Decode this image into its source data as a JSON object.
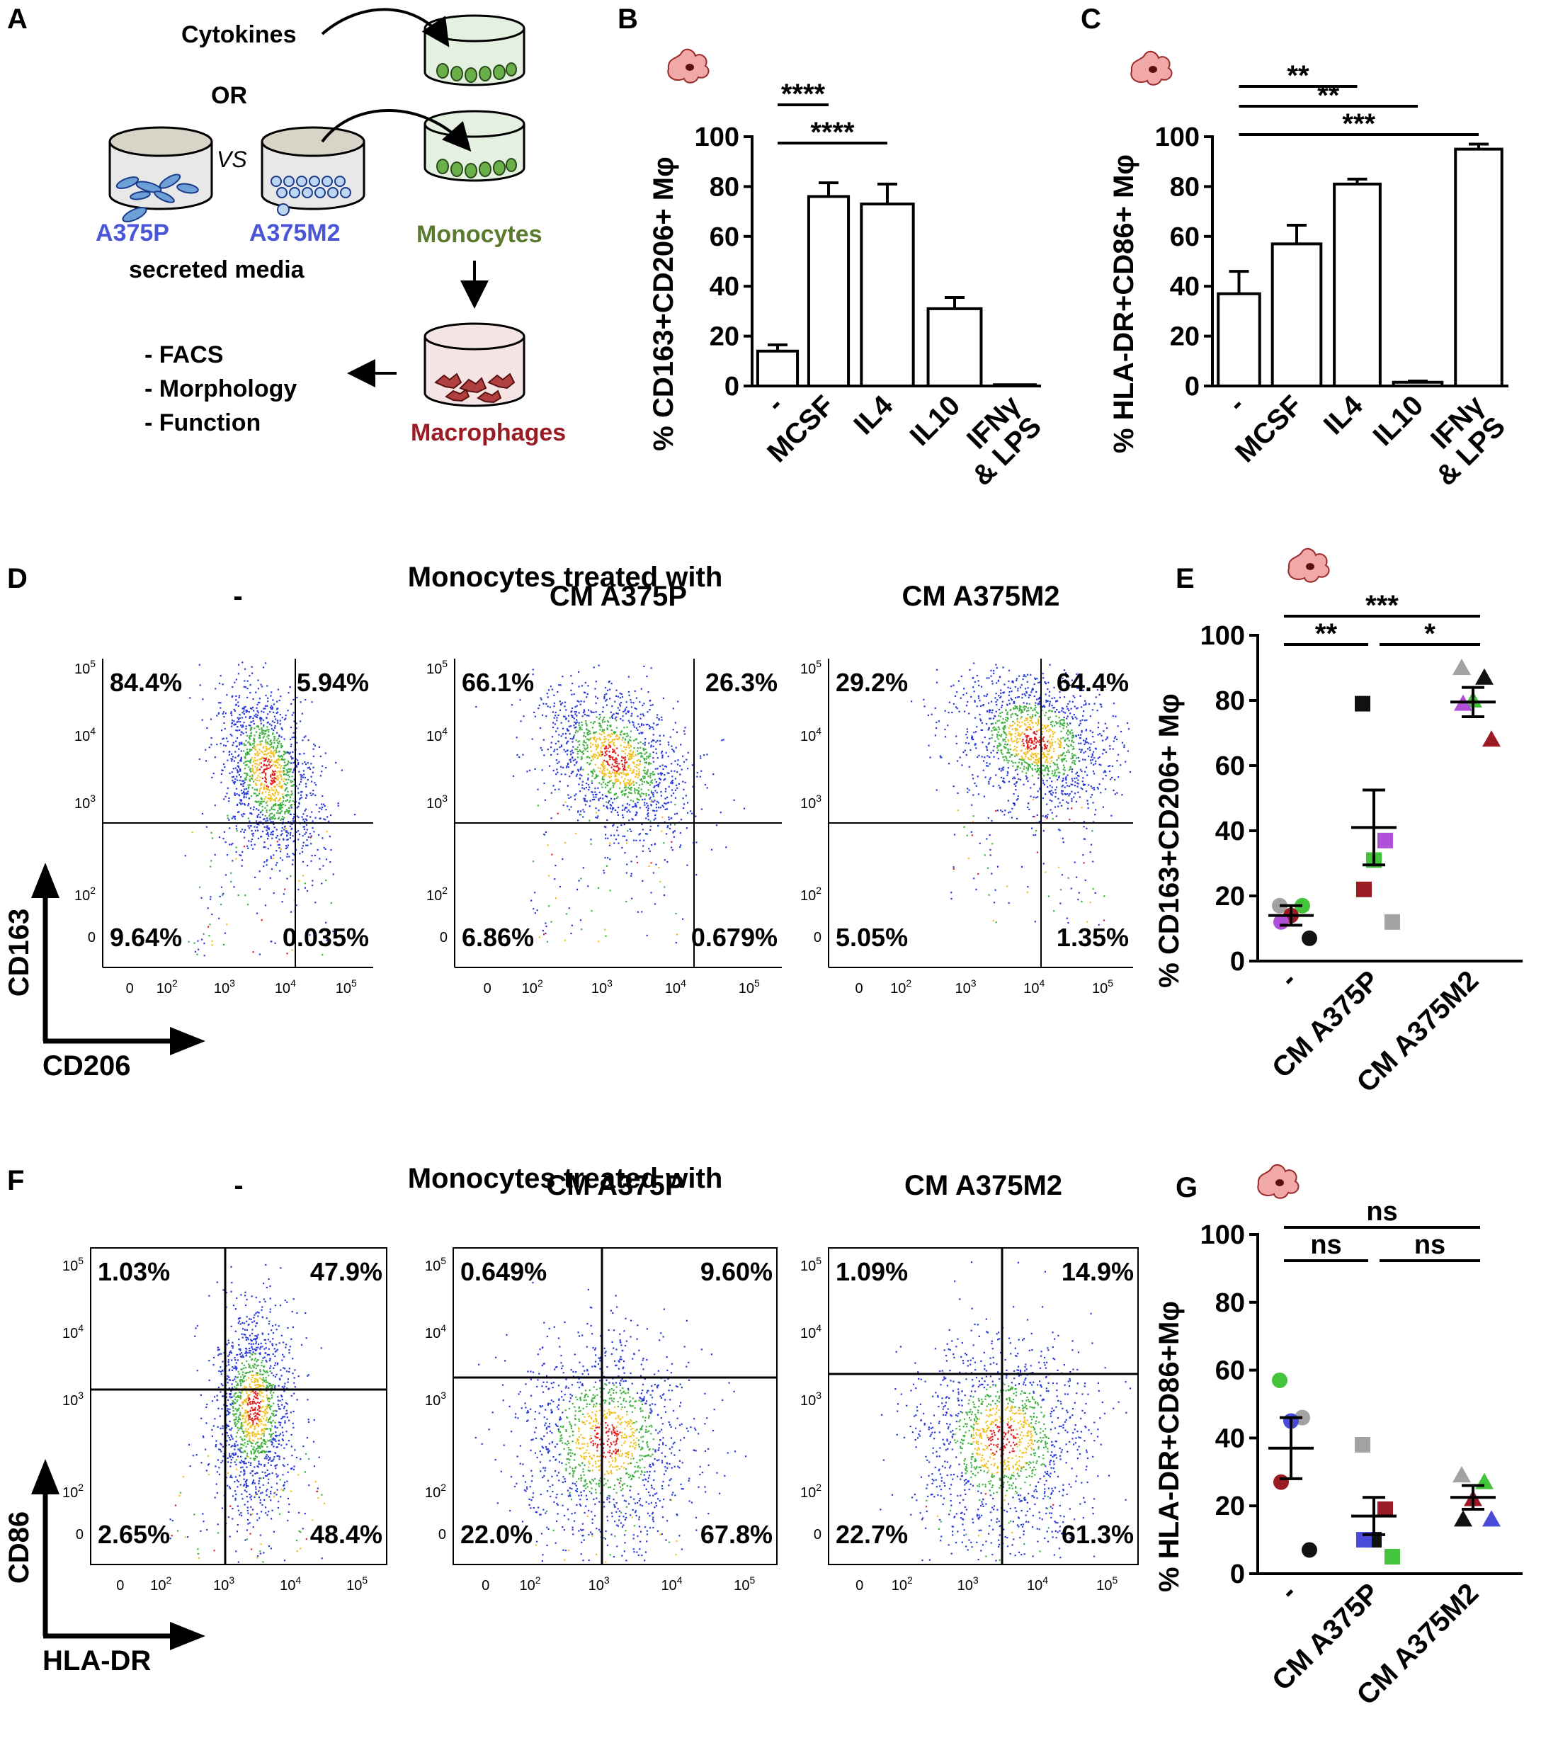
{
  "panel_labels": [
    "A",
    "B",
    "C",
    "D",
    "E",
    "F",
    "G"
  ],
  "schematic": {
    "cytokines": "Cytokines",
    "or": "OR",
    "vs": "VS",
    "a375p": "A375P",
    "a375m2": "A375M2",
    "secreted_media": "secreted media",
    "monocytes": "Monocytes",
    "macrophages": "Macrophages",
    "readouts": [
      "- FACS",
      "- Morphology",
      "- Function"
    ]
  },
  "colors": {
    "cell_line_blue": "#4a56d6",
    "monocyte_green": "#5a7a2e",
    "macrophage_red": "#9b1b24",
    "macrophage_icon": "#f0a8a8",
    "purple": "#b050d8",
    "green": "#43c43b",
    "grey": "#a2a2a2",
    "darkred": "#9b1b24",
    "blue": "#4a4ad8",
    "black": "#111111"
  },
  "chart_data": [
    {
      "id": "B",
      "type": "bar",
      "ylabel": "% CD163+CD206+ Mφ",
      "categories": [
        "-",
        "MCSF",
        "IL4",
        "IL10",
        "IFNγ\n& LPS"
      ],
      "values": [
        14,
        76,
        73,
        31,
        0.5
      ],
      "errors": [
        2.5,
        5.5,
        8,
        4.5,
        0
      ],
      "ylim": [
        0,
        100
      ],
      "yticks": [
        0,
        20,
        40,
        60,
        80,
        100
      ],
      "significance": [
        {
          "from": 0,
          "to": 1,
          "label": "****"
        },
        {
          "from": 0,
          "to": 2,
          "label": "****"
        }
      ]
    },
    {
      "id": "C",
      "type": "bar",
      "ylabel": "% HLA-DR+CD86+ Mφ",
      "categories": [
        "-",
        "MCSF",
        "IL4",
        "IL10",
        "IFNγ\n& LPS"
      ],
      "values": [
        37,
        57,
        81,
        1.5,
        95
      ],
      "errors": [
        9,
        7.5,
        2,
        0.5,
        2
      ],
      "ylim": [
        0,
        100
      ],
      "yticks": [
        0,
        20,
        40,
        60,
        80,
        100
      ],
      "significance": [
        {
          "from": 0,
          "to": 2,
          "label": "**"
        },
        {
          "from": 0,
          "to": 3,
          "label": "**"
        },
        {
          "from": 0,
          "to": 4,
          "label": "***"
        }
      ]
    },
    {
      "id": "E",
      "type": "scatter",
      "ylabel": "% CD163+CD206+ Mφ",
      "categories": [
        "-",
        "CM A375P",
        "CM A375M2"
      ],
      "ylim": [
        0,
        100
      ],
      "yticks": [
        0,
        20,
        40,
        60,
        80,
        100
      ],
      "groups": [
        {
          "mean": 14,
          "sem": 3,
          "points": [
            {
              "y": 17,
              "shape": "circle",
              "color": "grey"
            },
            {
              "y": 17,
              "shape": "circle",
              "color": "green"
            },
            {
              "y": 14,
              "shape": "circle",
              "color": "darkred"
            },
            {
              "y": 12,
              "shape": "circle",
              "color": "purple"
            },
            {
              "y": 7,
              "shape": "circle",
              "color": "black"
            }
          ]
        },
        {
          "mean": 41,
          "sem": 11.5,
          "points": [
            {
              "y": 79,
              "shape": "square",
              "color": "black"
            },
            {
              "y": 37,
              "shape": "square",
              "color": "purple"
            },
            {
              "y": 31,
              "shape": "square",
              "color": "green"
            },
            {
              "y": 22,
              "shape": "square",
              "color": "darkred"
            },
            {
              "y": 12,
              "shape": "square",
              "color": "grey"
            }
          ]
        },
        {
          "mean": 79.5,
          "sem": 4.5,
          "points": [
            {
              "y": 90,
              "shape": "triangle",
              "color": "grey"
            },
            {
              "y": 87,
              "shape": "triangle",
              "color": "black"
            },
            {
              "y": 80,
              "shape": "triangle",
              "color": "green"
            },
            {
              "y": 79,
              "shape": "triangle",
              "color": "purple"
            },
            {
              "y": 68,
              "shape": "triangle",
              "color": "darkred"
            }
          ]
        }
      ],
      "significance": [
        {
          "from": 0,
          "to": 1,
          "label": "**"
        },
        {
          "from": 1,
          "to": 2,
          "label": "*"
        },
        {
          "from": 0,
          "to": 2,
          "label": "***"
        }
      ]
    },
    {
      "id": "G",
      "type": "scatter",
      "ylabel": "% HLA-DR+CD86+Mφ",
      "categories": [
        "-",
        "CM A375P",
        "CM A375M2"
      ],
      "ylim": [
        0,
        100
      ],
      "yticks": [
        0,
        20,
        40,
        60,
        80,
        100
      ],
      "groups": [
        {
          "mean": 37,
          "sem": 9,
          "points": [
            {
              "y": 57,
              "shape": "circle",
              "color": "green"
            },
            {
              "y": 46,
              "shape": "circle",
              "color": "grey"
            },
            {
              "y": 45,
              "shape": "circle",
              "color": "blue"
            },
            {
              "y": 27,
              "shape": "circle",
              "color": "darkred"
            },
            {
              "y": 7,
              "shape": "circle",
              "color": "black"
            }
          ]
        },
        {
          "mean": 17,
          "sem": 5.5,
          "points": [
            {
              "y": 38,
              "shape": "square",
              "color": "grey"
            },
            {
              "y": 19,
              "shape": "square",
              "color": "darkred"
            },
            {
              "y": 10,
              "shape": "square",
              "color": "black"
            },
            {
              "y": 10,
              "shape": "square",
              "color": "blue"
            },
            {
              "y": 5,
              "shape": "square",
              "color": "green"
            }
          ]
        },
        {
          "mean": 22.5,
          "sem": 3.5,
          "points": [
            {
              "y": 29,
              "shape": "triangle",
              "color": "grey"
            },
            {
              "y": 27,
              "shape": "triangle",
              "color": "green"
            },
            {
              "y": 22,
              "shape": "triangle",
              "color": "darkred"
            },
            {
              "y": 16,
              "shape": "triangle",
              "color": "black"
            },
            {
              "y": 16,
              "shape": "triangle",
              "color": "blue"
            }
          ]
        }
      ],
      "significance": [
        {
          "from": 0,
          "to": 1,
          "label": "ns"
        },
        {
          "from": 1,
          "to": 2,
          "label": "ns"
        },
        {
          "from": 0,
          "to": 2,
          "label": "ns"
        }
      ]
    }
  ],
  "flow": {
    "D": {
      "title": "Monocytes treated with",
      "y_axis": "CD163",
      "x_axis": "CD206",
      "conditions": [
        {
          "label": "-",
          "quadrants": {
            "ul": "84.4%",
            "ur": "5.94%",
            "ll": "9.64%",
            "lr": "0.035%"
          }
        },
        {
          "label": "CM A375P",
          "quadrants": {
            "ul": "66.1%",
            "ur": "26.3%",
            "ll": "6.86%",
            "lr": "0.679%"
          }
        },
        {
          "label": "CM A375M2",
          "quadrants": {
            "ul": "29.2%",
            "ur": "64.4%",
            "ll": "5.05%",
            "lr": "1.35%"
          }
        }
      ]
    },
    "F": {
      "title": "Monocytes treated with",
      "y_axis": "CD86",
      "x_axis": "HLA-DR",
      "conditions": [
        {
          "label": "-",
          "quadrants": {
            "ul": "1.03%",
            "ur": "47.9%",
            "ll": "2.65%",
            "lr": "48.4%"
          }
        },
        {
          "label": "CM  A375P",
          "quadrants": {
            "ul": "0.649%",
            "ur": "9.60%",
            "ll": "22.0%",
            "lr": "67.8%"
          }
        },
        {
          "label": "CM  A375M2",
          "quadrants": {
            "ul": "1.09%",
            "ur": "14.9%",
            "ll": "22.7%",
            "lr": "61.3%"
          }
        }
      ]
    }
  }
}
